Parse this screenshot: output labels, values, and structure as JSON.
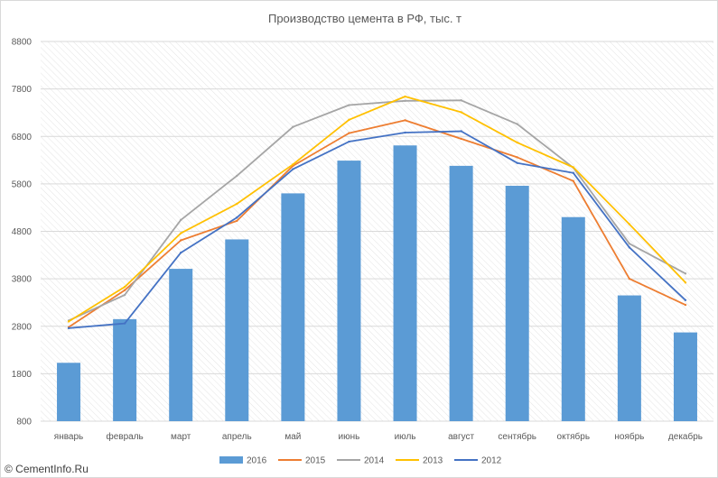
{
  "chart_data": {
    "type": "bar",
    "title": "Производство цемента в РФ, тыс. т",
    "categories": [
      "январь",
      "февраль",
      "март",
      "апрель",
      "май",
      "июнь",
      "июль",
      "август",
      "сентябрь",
      "октябрь",
      "ноябрь",
      "декабрь"
    ],
    "ylim": [
      800,
      8800
    ],
    "yticks": [
      "800",
      "1800",
      "2800",
      "3800",
      "4800",
      "5800",
      "6800",
      "7800",
      "8800"
    ],
    "grid": true,
    "legend_position": "bottom",
    "series": [
      {
        "name": "2016",
        "type": "bar",
        "color": "#5b9bd5",
        "values": [
          2030,
          2950,
          4010,
          4630,
          5600,
          6290,
          6610,
          6180,
          5760,
          5100,
          3450,
          2670
        ]
      },
      {
        "name": "2015",
        "type": "line",
        "color": "#ed7d31",
        "values": [
          2780,
          3560,
          4610,
          5020,
          6180,
          6870,
          7140,
          6750,
          6360,
          5860,
          3800,
          3250
        ]
      },
      {
        "name": "2014",
        "type": "line",
        "color": "#a5a5a5",
        "values": [
          2920,
          3460,
          5040,
          5970,
          7000,
          7460,
          7550,
          7560,
          7060,
          6140,
          4540,
          3910
        ]
      },
      {
        "name": "2013",
        "type": "line",
        "color": "#ffc000",
        "values": [
          2900,
          3630,
          4760,
          5380,
          6210,
          7150,
          7640,
          7310,
          6670,
          6150,
          4950,
          3720
        ]
      },
      {
        "name": "2012",
        "type": "line",
        "color": "#4472c4",
        "values": [
          2760,
          2860,
          4350,
          5090,
          6110,
          6690,
          6880,
          6910,
          6240,
          6030,
          4460,
          3350
        ]
      }
    ]
  },
  "watermark": {
    "icon": "copyright-sign",
    "text": "© CementInfo.Ru"
  }
}
